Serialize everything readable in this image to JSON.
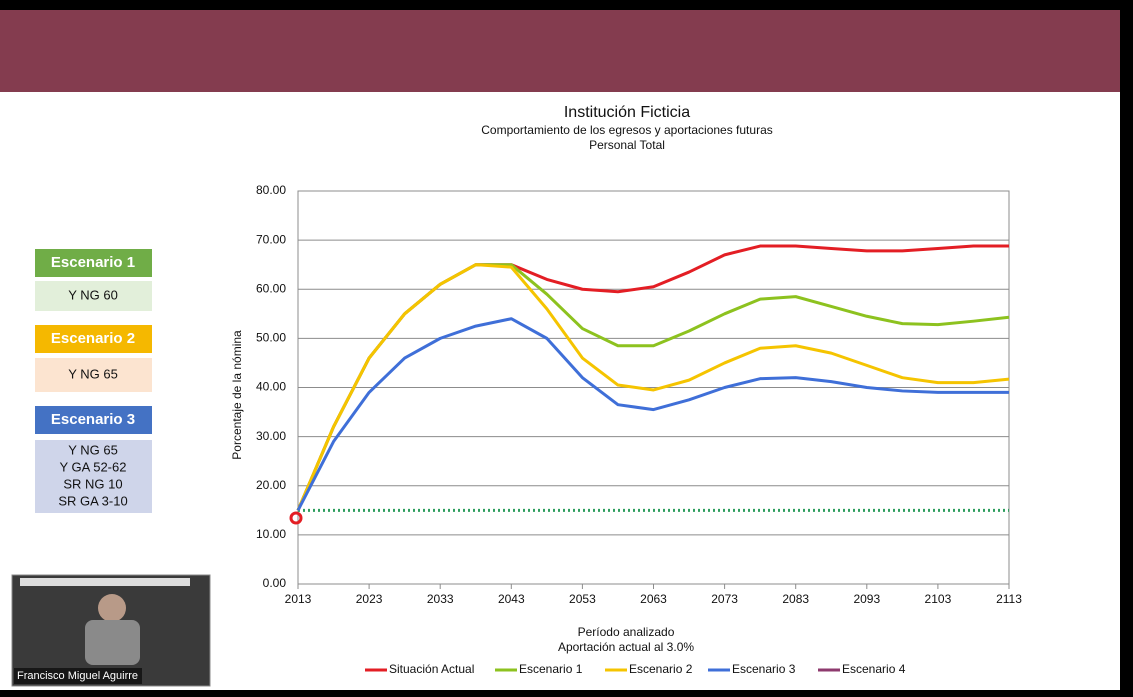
{
  "slide": {
    "scenarios": [
      {
        "title": "Escenario 1",
        "color": "#70ad47",
        "body_color": "#e2efda",
        "lines": [
          "Y NG 60"
        ]
      },
      {
        "title": "Escenario 2",
        "color": "#f5b800",
        "body_color": "#fce4d0",
        "lines": [
          "Y NG 65"
        ]
      },
      {
        "title": "Escenario 3",
        "color": "#4472c4",
        "body_color": "#cfd5ea",
        "lines": [
          "Y NG 65",
          "Y GA 52-62",
          "SR NG 10",
          "SR GA 3-10"
        ]
      }
    ]
  },
  "participant": {
    "name": "Francisco Miguel Aguirre"
  },
  "chart_data": {
    "type": "line",
    "title": "Institución Ficticia",
    "subtitle": "Comportamiento de los egresos y aportaciones futuras",
    "subtitle2": "Personal Total",
    "x_label": "Período analizado",
    "x_label2": "Aportación actual al 3.0%",
    "y_label": "Porcentaje de la nómina",
    "x": [
      2013,
      2018,
      2023,
      2028,
      2033,
      2038,
      2043,
      2048,
      2053,
      2058,
      2063,
      2068,
      2073,
      2078,
      2083,
      2088,
      2093,
      2098,
      2103,
      2108,
      2113
    ],
    "xlim": [
      2013,
      2113
    ],
    "xticks": [
      2013,
      2023,
      2033,
      2043,
      2053,
      2063,
      2073,
      2083,
      2093,
      2103,
      2113
    ],
    "ylim": [
      0,
      80
    ],
    "yticks": [
      {
        "value": 0,
        "label": "0.00"
      },
      {
        "value": 10,
        "label": "10.00"
      },
      {
        "value": 20,
        "label": "20.00"
      },
      {
        "value": 30,
        "label": "30.00"
      },
      {
        "value": 40,
        "label": "40.00"
      },
      {
        "value": 50,
        "label": "50.00"
      },
      {
        "value": 60,
        "label": "60.00"
      },
      {
        "value": 70,
        "label": "70.00"
      },
      {
        "value": 80,
        "label": "80.00"
      }
    ],
    "grid": true,
    "legend": "bottom",
    "reference_line": {
      "value": 15,
      "color": "#2e9e5e"
    },
    "series": [
      {
        "name": "Situación Actual",
        "color": "#e31e24",
        "values": [
          15,
          32,
          46,
          55,
          61,
          65,
          65,
          62,
          60,
          59.5,
          60.5,
          63.5,
          67,
          68.8,
          68.8,
          68.3,
          67.8,
          67.8,
          68.3,
          68.8,
          68.8
        ]
      },
      {
        "name": "Escenario 1",
        "color": "#8dc21f",
        "values": [
          15,
          32,
          46,
          55,
          61,
          65,
          65,
          59,
          52,
          48.5,
          48.5,
          51.5,
          55,
          58,
          58.5,
          56.5,
          54.5,
          53,
          52.8,
          53.5,
          54.3
        ]
      },
      {
        "name": "Escenario 2",
        "color": "#f5c400",
        "values": [
          15,
          32,
          46,
          55,
          61,
          65,
          64.5,
          56,
          46,
          40.5,
          39.5,
          41.5,
          45,
          48,
          48.5,
          47,
          44.5,
          42,
          41,
          41,
          41.7
        ]
      },
      {
        "name": "Escenario 3",
        "color": "#3f6fd8",
        "values": [
          15,
          29,
          39,
          46,
          50,
          52.5,
          54,
          50,
          42,
          36.5,
          35.5,
          37.5,
          40,
          41.8,
          42,
          41.2,
          40,
          39.3,
          39,
          39,
          39
        ]
      },
      {
        "name": "Escenario 4",
        "color": "#8e3a6e",
        "values": [
          null,
          null,
          null,
          null,
          null,
          null,
          null,
          null,
          null,
          null,
          null,
          null,
          null,
          null,
          null,
          null,
          null,
          null,
          null,
          null,
          null
        ]
      }
    ]
  }
}
